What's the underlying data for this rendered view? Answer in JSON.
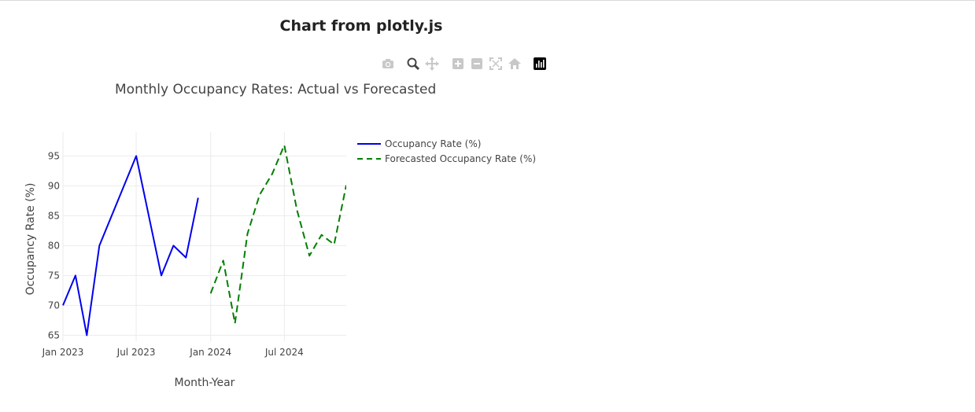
{
  "page": {
    "heading": "Chart from plotly.js"
  },
  "toolbar": {
    "buttons": [
      {
        "icon": "camera-icon"
      },
      {
        "icon": "zoom-icon"
      },
      {
        "icon": "pan-icon"
      },
      {
        "icon": "zoom-in-icon"
      },
      {
        "icon": "zoom-out-icon"
      },
      {
        "icon": "autoscale-icon"
      },
      {
        "icon": "home-icon"
      },
      {
        "icon": "plotly-logo-icon"
      }
    ]
  },
  "chart_data": {
    "type": "line",
    "title": "Monthly Occupancy Rates: Actual vs Forecasted",
    "xlabel": "Month-Year",
    "ylabel": "Occupancy Rate (%)",
    "ylim": [
      64,
      99
    ],
    "xlim": [
      "2023-01-01",
      "2024-12-01"
    ],
    "x_ticks": [
      {
        "date": "2023-01-01",
        "label": "Jan 2023"
      },
      {
        "date": "2023-07-01",
        "label": "Jul 2023"
      },
      {
        "date": "2024-01-01",
        "label": "Jan 2024"
      },
      {
        "date": "2024-07-01",
        "label": "Jul 2024"
      }
    ],
    "y_ticks": [
      65,
      70,
      75,
      80,
      85,
      90,
      95
    ],
    "grid": true,
    "legend_position": "top-right outside",
    "series": [
      {
        "name": "Occupancy Rate (%)",
        "color": "#0000ee",
        "dash": "solid",
        "x": [
          "2023-01-01",
          "2023-02-01",
          "2023-03-01",
          "2023-04-01",
          "2023-07-01",
          "2023-09-01",
          "2023-10-01",
          "2023-11-01",
          "2023-12-01"
        ],
        "y": [
          70,
          75,
          65,
          80,
          95,
          75,
          80,
          78,
          88
        ]
      },
      {
        "name": "Forecasted Occupancy Rate (%)",
        "color": "#008000",
        "dash": "dashed",
        "x": [
          "2024-01-01",
          "2024-02-01",
          "2024-03-01",
          "2024-04-01",
          "2024-05-01",
          "2024-06-01",
          "2024-07-01",
          "2024-08-01",
          "2024-09-01",
          "2024-10-01",
          "2024-11-01",
          "2024-12-01"
        ],
        "y": [
          72,
          77.5,
          67,
          82,
          88.5,
          92,
          96.8,
          86,
          78.3,
          81.8,
          80.2,
          90.1
        ]
      }
    ]
  }
}
